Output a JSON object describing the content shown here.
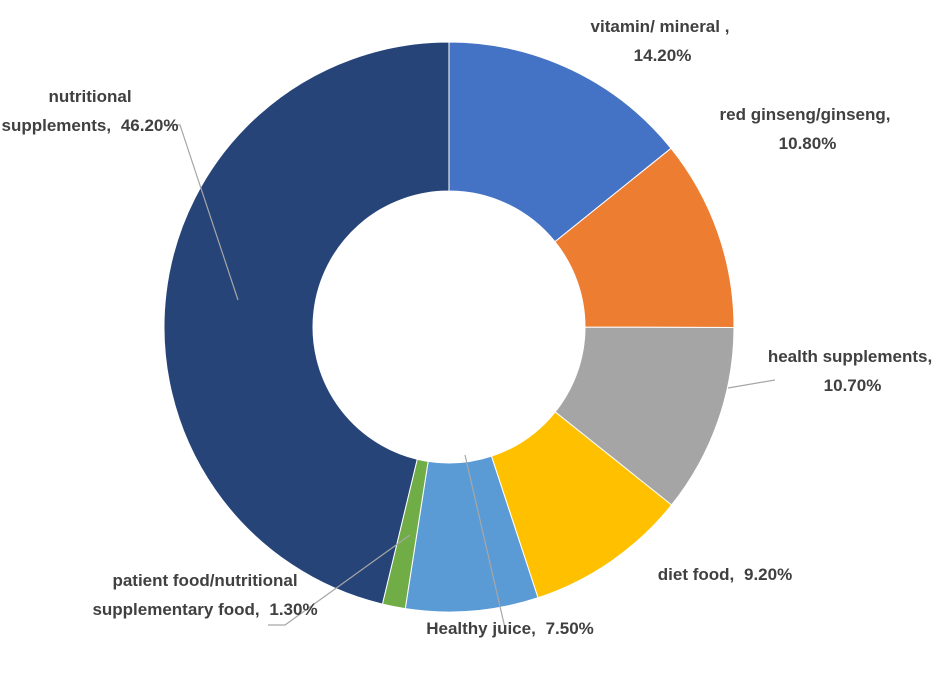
{
  "chart_data": {
    "type": "donut",
    "categories": [
      "vitamin/ mineral ,",
      "red ginseng/ginseng,",
      "health supplements,",
      "diet food,",
      "Healthy juice,",
      "patient food/nutritional supplementary food,",
      "nutritional supplements,"
    ],
    "values": [
      14.2,
      10.8,
      10.7,
      9.2,
      7.5,
      1.3,
      46.2
    ],
    "value_labels": [
      "14.20%",
      "10.80%",
      "10.70%",
      "9.20%",
      "7.50%",
      "1.30%",
      "46.20%"
    ],
    "colors": [
      "#4472c4",
      "#ed7d31",
      "#a5a5a5",
      "#ffc000",
      "#5b9bd5",
      "#70ad47",
      "#264478"
    ]
  }
}
